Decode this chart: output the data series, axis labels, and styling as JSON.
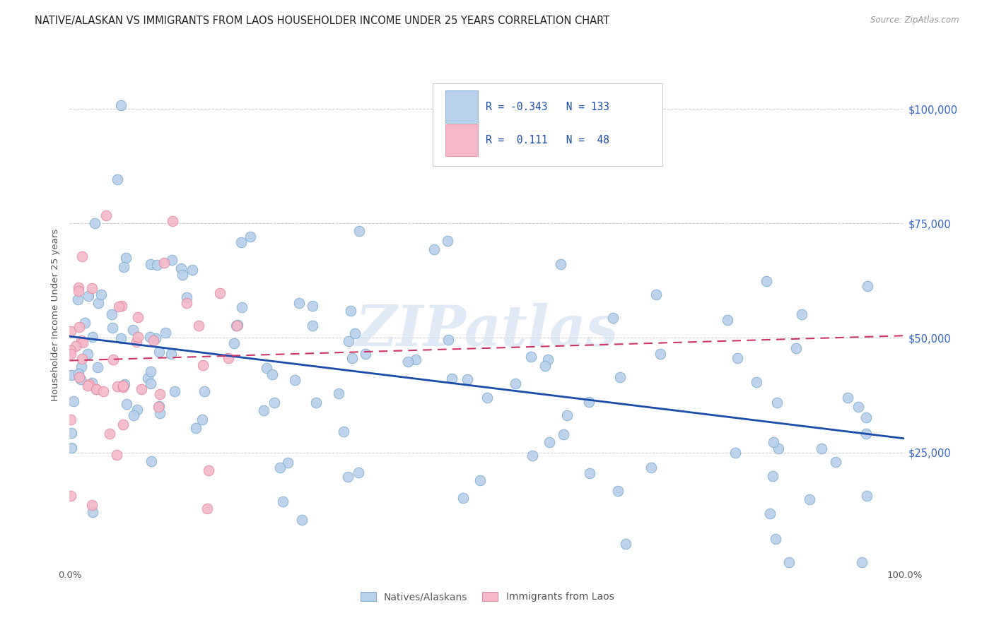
{
  "title": "NATIVE/ALASKAN VS IMMIGRANTS FROM LAOS HOUSEHOLDER INCOME UNDER 25 YEARS CORRELATION CHART",
  "source": "Source: ZipAtlas.com",
  "ylabel": "Householder Income Under 25 years",
  "ytick_values": [
    25000,
    50000,
    75000,
    100000
  ],
  "R_native": -0.343,
  "N_native": 133,
  "R_laos": 0.111,
  "N_laos": 48,
  "native_color": "#b8d0ea",
  "native_edge": "#7aaace",
  "laos_color": "#f5b8c8",
  "laos_edge": "#e088a0",
  "native_line_color": "#1a4caa",
  "laos_line_color": "#cc3366",
  "watermark": "ZIPatlas",
  "ylim": [
    0,
    110000
  ],
  "xlim": [
    0.0,
    1.0
  ],
  "background_color": "#ffffff",
  "grid_color": "#cccccc",
  "seed": 42
}
